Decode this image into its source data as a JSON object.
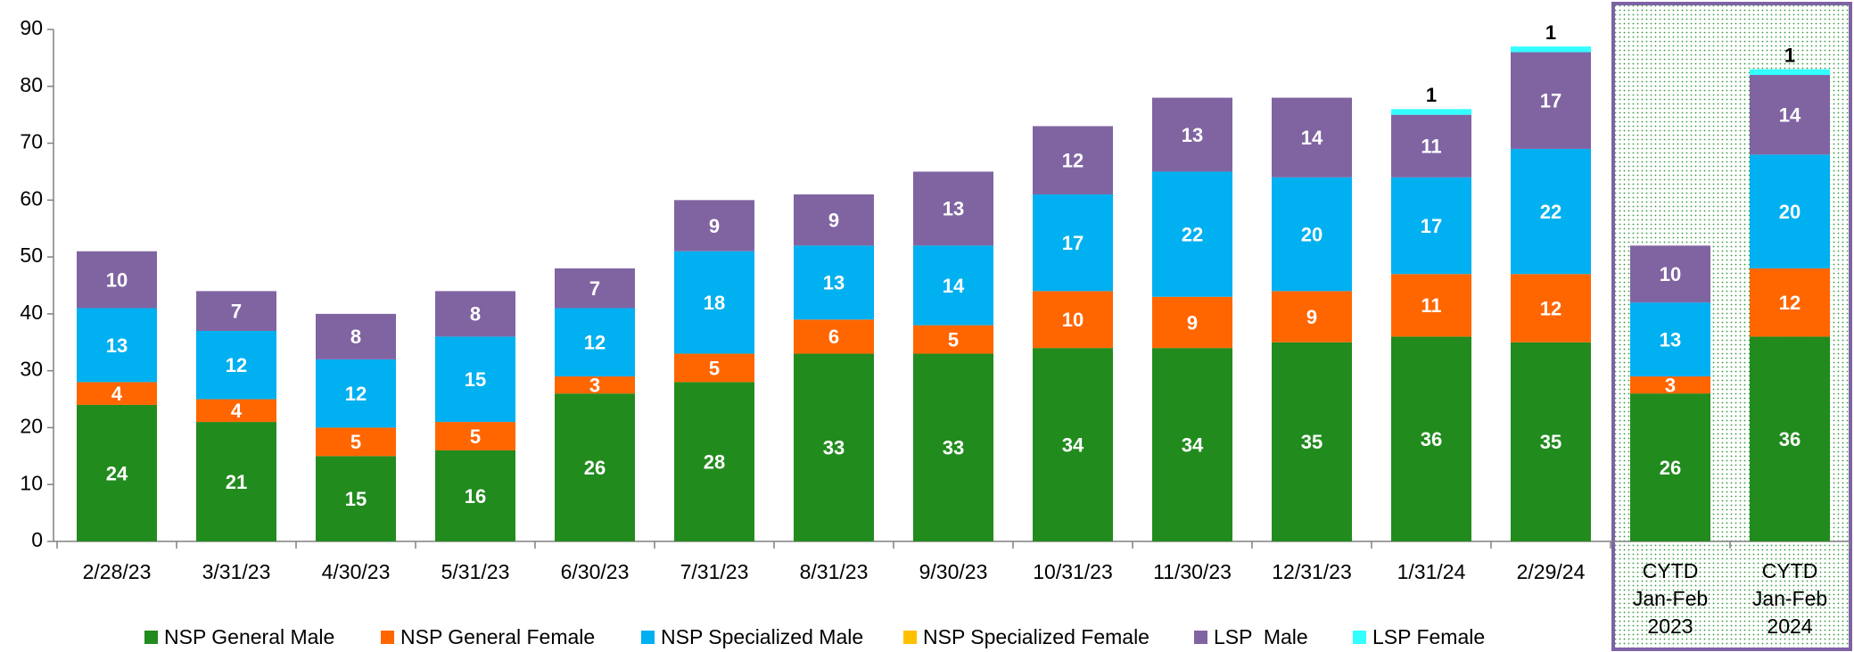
{
  "chart_data": {
    "type": "bar",
    "stacked": true,
    "categories": [
      "2/28/23",
      "3/31/23",
      "4/30/23",
      "5/31/23",
      "6/30/23",
      "7/31/23",
      "8/31/23",
      "9/30/23",
      "10/31/23",
      "11/30/23",
      "12/31/23",
      "1/31/24",
      "2/29/24",
      "CYTD Jan-Feb 2023",
      "CYTD Jan-Feb 2024"
    ],
    "series": [
      {
        "name": "NSP General Male",
        "color": "#228b1e",
        "values": [
          24,
          21,
          15,
          16,
          26,
          28,
          33,
          33,
          34,
          34,
          35,
          36,
          35,
          26,
          36
        ]
      },
      {
        "name": "NSP General Female",
        "color": "#ff6600",
        "values": [
          4,
          4,
          5,
          5,
          3,
          5,
          6,
          5,
          10,
          9,
          9,
          11,
          12,
          3,
          12
        ]
      },
      {
        "name": "NSP Specialized Male",
        "color": "#00b0f0",
        "values": [
          13,
          12,
          12,
          15,
          12,
          18,
          13,
          14,
          17,
          22,
          20,
          17,
          22,
          13,
          20
        ]
      },
      {
        "name": "NSP Specialized Female",
        "color": "#ffc000",
        "values": [
          0,
          0,
          0,
          0,
          0,
          0,
          0,
          0,
          0,
          0,
          0,
          0,
          0,
          0,
          0
        ]
      },
      {
        "name": "LSP  Male",
        "color": "#8064a2",
        "values": [
          10,
          7,
          8,
          8,
          7,
          9,
          9,
          13,
          12,
          13,
          14,
          11,
          17,
          10,
          14
        ]
      },
      {
        "name": "LSP Female",
        "color": "#33ffff",
        "values": [
          0,
          0,
          0,
          0,
          0,
          0,
          0,
          0,
          0,
          0,
          0,
          1,
          1,
          0,
          1
        ]
      }
    ],
    "ylim": [
      0,
      90
    ],
    "yticks": [
      0,
      10,
      20,
      30,
      40,
      50,
      60,
      70,
      80,
      90
    ],
    "grid": false,
    "legend": "bottom"
  }
}
